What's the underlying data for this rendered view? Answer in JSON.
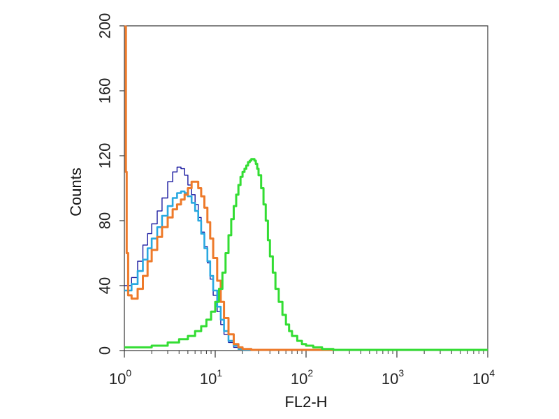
{
  "chart_data": {
    "type": "line",
    "xlabel": "FL2-H",
    "ylabel": "Counts",
    "x_scale": "log",
    "xlim": [
      1,
      10000
    ],
    "ylim": [
      0,
      200
    ],
    "x_ticks": [
      {
        "base": "10",
        "exp": "0"
      },
      {
        "base": "10",
        "exp": "1"
      },
      {
        "base": "10",
        "exp": "2"
      },
      {
        "base": "10",
        "exp": "3"
      },
      {
        "base": "10",
        "exp": "4"
      }
    ],
    "y_ticks": [
      "0",
      "40",
      "80",
      "120",
      "160",
      "200"
    ],
    "y_tick_values": [
      0,
      40,
      80,
      120,
      160,
      200
    ],
    "grid": false,
    "legend": "none",
    "series": [
      {
        "color": "#1a1aa0",
        "x": [
          1.0,
          1.2,
          1.4,
          1.6,
          1.8,
          2.0,
          2.3,
          2.6,
          3.0,
          3.4,
          3.8,
          4.2,
          4.6,
          5.0,
          5.5,
          6.0,
          6.5,
          7.0,
          7.6,
          8.2,
          8.8,
          9.5,
          10.5,
          11.5,
          12.5,
          14,
          16,
          18,
          20,
          25,
          40,
          100,
          1000,
          10000
        ],
        "y": [
          40,
          45,
          55,
          65,
          72,
          78,
          86,
          94,
          104,
          110,
          113,
          112,
          108,
          102,
          96,
          90,
          82,
          73,
          64,
          54,
          44,
          34,
          24,
          16,
          10,
          5,
          2,
          1,
          0,
          0,
          0,
          0,
          0,
          0
        ]
      },
      {
        "color": "#29a8e0",
        "x": [
          1.0,
          1.2,
          1.4,
          1.6,
          1.8,
          2.0,
          2.3,
          2.6,
          3.0,
          3.4,
          3.8,
          4.2,
          4.6,
          5.0,
          5.5,
          6.0,
          6.5,
          7.0,
          7.6,
          8.2,
          8.8,
          9.5,
          10.5,
          11.5,
          12.5,
          14,
          16,
          18,
          20,
          25,
          40,
          100,
          1000,
          10000
        ],
        "y": [
          37,
          41,
          49,
          56,
          63,
          69,
          76,
          83,
          89,
          94,
          97,
          98,
          97,
          95,
          91,
          86,
          80,
          72,
          63,
          55,
          46,
          37,
          27,
          19,
          12,
          6,
          3,
          1,
          0,
          0,
          0,
          0,
          0,
          0
        ]
      },
      {
        "color": "#ee7a2a",
        "x": [
          1.0,
          1.02,
          1.04,
          1.06,
          1.1,
          1.2,
          1.4,
          1.6,
          1.8,
          2.0,
          2.3,
          2.6,
          3.0,
          3.4,
          3.8,
          4.2,
          4.6,
          5.0,
          5.5,
          6.0,
          6.5,
          7.0,
          7.6,
          8.2,
          8.8,
          9.5,
          10.5,
          11.5,
          12.5,
          14,
          16,
          18,
          20,
          25,
          40,
          100,
          1000,
          10000
        ],
        "y": [
          200,
          200,
          110,
          60,
          34,
          32,
          38,
          46,
          55,
          62,
          70,
          76,
          82,
          87,
          90,
          93,
          96,
          100,
          104,
          104,
          100,
          95,
          88,
          79,
          69,
          57,
          43,
          30,
          20,
          10,
          4,
          2,
          1,
          0,
          0,
          0,
          0,
          0
        ]
      },
      {
        "color": "#33dd33",
        "x": [
          1.0,
          2.0,
          3.0,
          4.0,
          5.0,
          6.0,
          7.0,
          8.0,
          9.0,
          10,
          11,
          12,
          13,
          14,
          15,
          16,
          17,
          18,
          19,
          20,
          21,
          22,
          23,
          24,
          25,
          26,
          27,
          28,
          29,
          30,
          32,
          34,
          36,
          38,
          40,
          43,
          46,
          50,
          55,
          60,
          65,
          70,
          80,
          90,
          100,
          120,
          150,
          200,
          300,
          1000,
          10000
        ],
        "y": [
          2,
          3,
          5,
          7,
          9,
          12,
          15,
          19,
          24,
          30,
          38,
          48,
          60,
          71,
          81,
          89,
          96,
          102,
          107,
          110,
          112,
          114,
          116,
          117,
          118,
          118,
          117,
          115,
          112,
          108,
          100,
          90,
          80,
          68,
          58,
          48,
          38,
          30,
          22,
          16,
          12,
          9,
          6,
          4,
          3,
          2,
          1,
          0,
          0,
          0,
          0
        ]
      }
    ]
  }
}
